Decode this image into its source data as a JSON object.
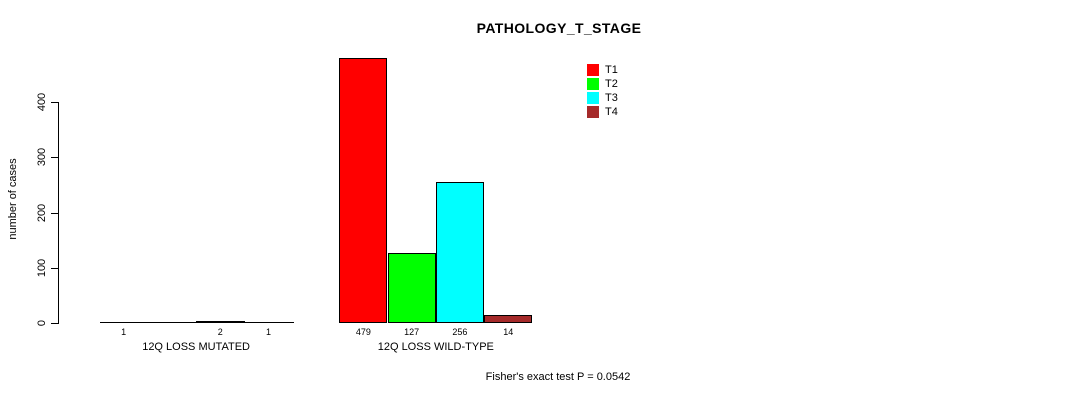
{
  "chart_data": {
    "type": "bar",
    "title": "PATHOLOGY_T_STAGE",
    "ylabel": "number of cases",
    "ylim": [
      0,
      480
    ],
    "yticks": [
      0,
      100,
      200,
      300,
      400
    ],
    "grid": false,
    "legend_position": "top-right",
    "groups": [
      "12Q LOSS MUTATED",
      "12Q LOSS WILD-TYPE"
    ],
    "series": [
      {
        "name": "T1",
        "color": "#ff0000",
        "values": [
          1,
          479
        ]
      },
      {
        "name": "T2",
        "color": "#00ff00",
        "values": [
          0,
          127
        ]
      },
      {
        "name": "T3",
        "color": "#00ffff",
        "values": [
          2,
          256
        ]
      },
      {
        "name": "T4",
        "color": "#a52a2a",
        "values": [
          1,
          14
        ]
      }
    ],
    "bar_labels": [
      [
        "1",
        "",
        "2",
        "1"
      ],
      [
        "479",
        "127",
        "256",
        "14"
      ]
    ],
    "annotation": "Fisher's exact test P = 0.0542"
  }
}
